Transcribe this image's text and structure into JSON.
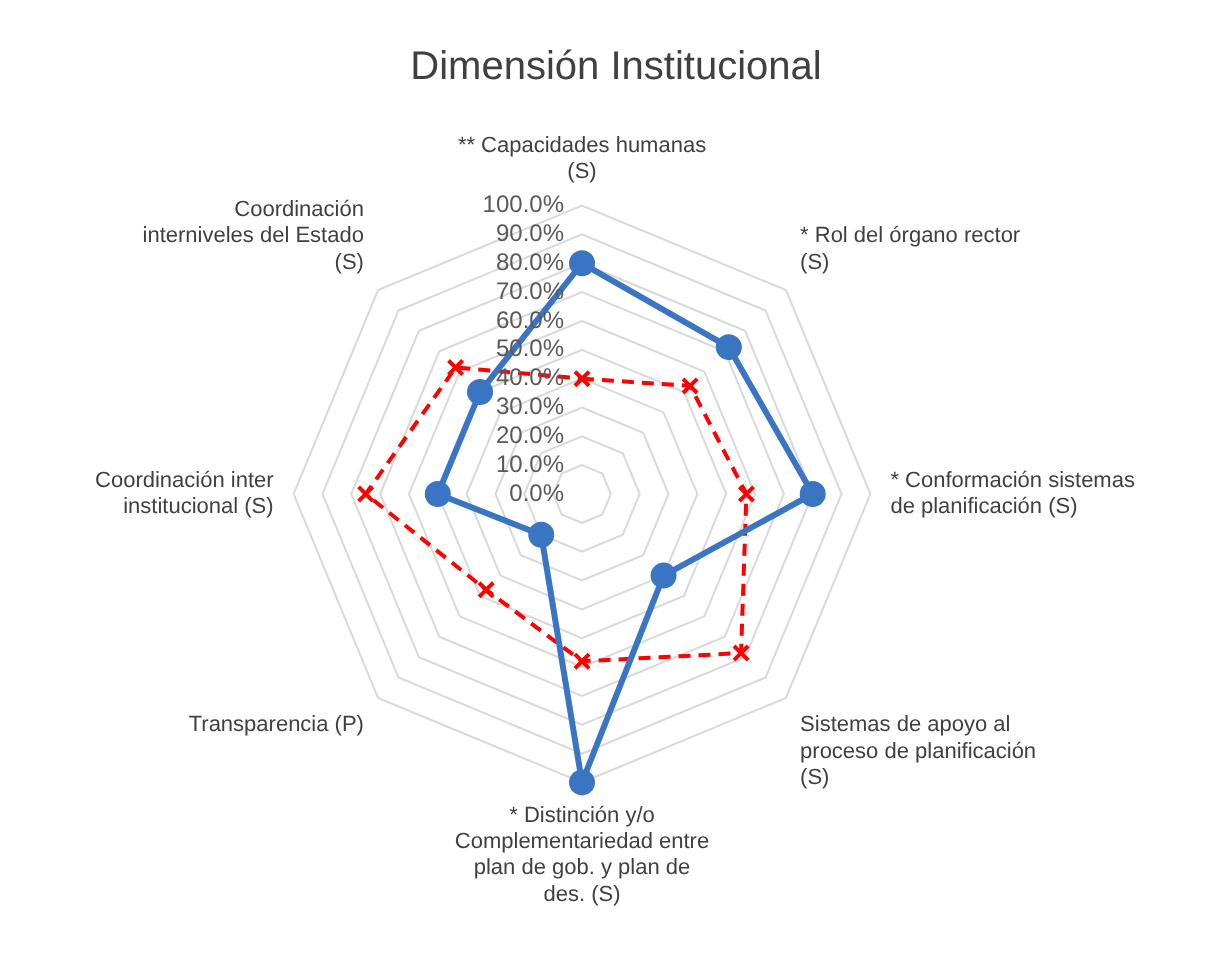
{
  "chart_data": {
    "type": "radar",
    "title": "Dimensión Institucional",
    "categories": [
      "** Capacidades humanas (S)",
      "* Rol del órgano rector (S)",
      "* Conformación sistemas de planificación (S)",
      "Sistemas de apoyo al proceso de planificación (S)",
      "* Distinción y/o Complementariedad entre plan de gob. y plan de des. (S)",
      "Transparencia (P)",
      "Coordinación inter institucional (S)",
      "Coordinación interniveles del Estado (S)"
    ],
    "series": [
      {
        "color": "#3a75c4",
        "marker": "circle",
        "line_style": "solid",
        "values": [
          80,
          72,
          80,
          40,
          100,
          20,
          50,
          50
        ]
      },
      {
        "color": "#ff0000",
        "marker": "cross",
        "line_style": "dashed",
        "values": [
          40,
          53,
          57,
          78,
          58,
          47,
          75,
          62
        ]
      }
    ],
    "ylim": [
      0,
      100
    ],
    "yticks": [
      {
        "value": 0,
        "label": "0.0%"
      },
      {
        "value": 10,
        "label": "10.0%"
      },
      {
        "value": 20,
        "label": "20.0%"
      },
      {
        "value": 30,
        "label": "30.0%"
      },
      {
        "value": 40,
        "label": "40.0%"
      },
      {
        "value": 50,
        "label": "50.0%"
      },
      {
        "value": 60,
        "label": "60.0%"
      },
      {
        "value": 70,
        "label": "70.0%"
      },
      {
        "value": 80,
        "label": "80.0%"
      },
      {
        "value": 90,
        "label": "90.0%"
      },
      {
        "value": 100,
        "label": "100.0%"
      }
    ],
    "grid": true,
    "legend": false
  }
}
